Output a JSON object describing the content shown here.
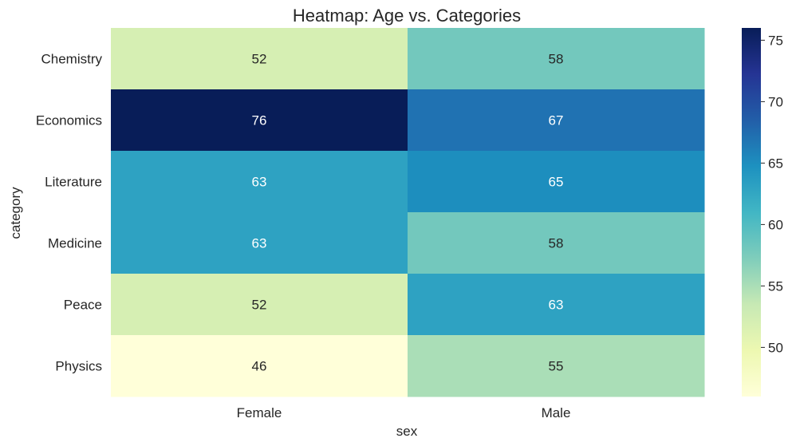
{
  "chart_data": {
    "type": "heatmap",
    "title": "Heatmap: Age vs. Categories",
    "xlabel": "sex",
    "ylabel": "category",
    "x_categories": [
      "Female",
      "Male"
    ],
    "y_categories": [
      "Chemistry",
      "Economics",
      "Literature",
      "Medicine",
      "Peace",
      "Physics"
    ],
    "values": [
      [
        52,
        58
      ],
      [
        76,
        67
      ],
      [
        63,
        65
      ],
      [
        63,
        58
      ],
      [
        52,
        63
      ],
      [
        46,
        55
      ]
    ],
    "colormap": "YlGnBu",
    "color_range": [
      46,
      76
    ],
    "colorbar_ticks": [
      50,
      55,
      60,
      65,
      70,
      75
    ],
    "annotated": true
  }
}
